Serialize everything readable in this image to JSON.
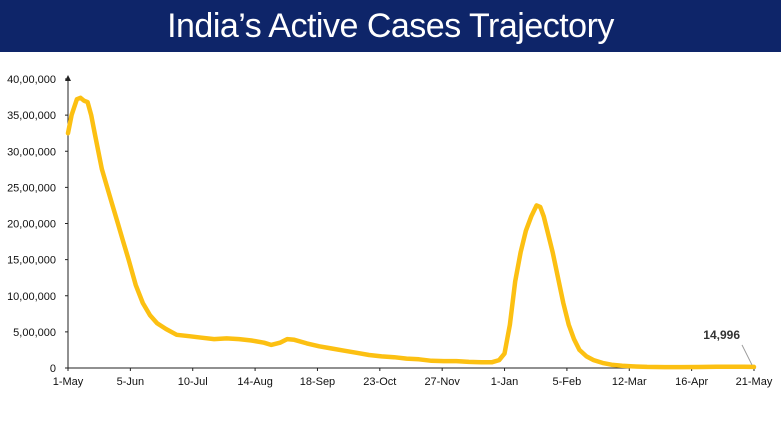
{
  "header": {
    "title": "India’s Active Cases Trajectory",
    "background": "#0e2569",
    "text_color": "#ffffff"
  },
  "chart_data": {
    "type": "line",
    "title": "India’s Active Cases Trajectory",
    "xlabel": "",
    "ylabel": "",
    "ylim": [
      0,
      4000000
    ],
    "y_ticks": [
      0,
      500000,
      1000000,
      1500000,
      2000000,
      2500000,
      3000000,
      3500000,
      4000000
    ],
    "y_tick_labels": [
      "0",
      "5,00,000",
      "10,00,000",
      "15,00,000",
      "20,00,000",
      "25,00,000",
      "30,00,000",
      "35,00,000",
      "40,00,000"
    ],
    "x_range": [
      "2021-05-01",
      "2022-05-21"
    ],
    "x_ticks": [
      "2021-05-01",
      "2021-06-05",
      "2021-07-10",
      "2021-08-14",
      "2021-09-18",
      "2021-10-23",
      "2021-11-27",
      "2022-01-01",
      "2022-02-05",
      "2022-03-12",
      "2022-04-16",
      "2022-05-21"
    ],
    "x_tick_labels": [
      "1-May",
      "5-Jun",
      "10-Jul",
      "14-Aug",
      "18-Sep",
      "23-Oct",
      "27-Nov",
      "1-Jan",
      "5-Feb",
      "12-Mar",
      "16-Apr",
      "21-May"
    ],
    "grid": false,
    "legend": "none",
    "line_color": "#fcc012",
    "series": [
      {
        "x": [
          "2021-05-01",
          "2021-05-03",
          "2021-05-06",
          "2021-05-08",
          "2021-05-10",
          "2021-05-12",
          "2021-05-14",
          "2021-05-16",
          "2021-05-18",
          "2021-05-20",
          "2021-05-23",
          "2021-05-26",
          "2021-05-29",
          "2021-06-01",
          "2021-06-04",
          "2021-06-08",
          "2021-06-12",
          "2021-06-16",
          "2021-06-20",
          "2021-06-25",
          "2021-07-01",
          "2021-07-08",
          "2021-07-15",
          "2021-07-22",
          "2021-07-29",
          "2021-08-05",
          "2021-08-12",
          "2021-08-19",
          "2021-08-23",
          "2021-08-28",
          "2021-09-01",
          "2021-09-05",
          "2021-09-12",
          "2021-09-19",
          "2021-09-26",
          "2021-10-03",
          "2021-10-10",
          "2021-10-17",
          "2021-10-24",
          "2021-10-31",
          "2021-11-07",
          "2021-11-14",
          "2021-11-21",
          "2021-11-28",
          "2021-12-05",
          "2021-12-12",
          "2021-12-19",
          "2021-12-25",
          "2021-12-29",
          "2022-01-01",
          "2022-01-04",
          "2022-01-07",
          "2022-01-10",
          "2022-01-13",
          "2022-01-16",
          "2022-01-19",
          "2022-01-21",
          "2022-01-23",
          "2022-01-25",
          "2022-01-28",
          "2022-01-31",
          "2022-02-03",
          "2022-02-06",
          "2022-02-09",
          "2022-02-12",
          "2022-02-16",
          "2022-02-20",
          "2022-02-25",
          "2022-03-02",
          "2022-03-08",
          "2022-03-14",
          "2022-03-22",
          "2022-04-01",
          "2022-04-10",
          "2022-04-20",
          "2022-04-30",
          "2022-05-10",
          "2022-05-15",
          "2022-05-21"
        ],
        "values": [
          3250000,
          3500000,
          3720000,
          3740000,
          3700000,
          3680000,
          3500000,
          3250000,
          3000000,
          2750000,
          2500000,
          2250000,
          2000000,
          1750000,
          1500000,
          1150000,
          900000,
          730000,
          620000,
          540000,
          460000,
          440000,
          420000,
          400000,
          410000,
          400000,
          380000,
          350000,
          320000,
          350000,
          400000,
          390000,
          340000,
          300000,
          270000,
          240000,
          210000,
          180000,
          160000,
          150000,
          130000,
          120000,
          100000,
          95000,
          95000,
          85000,
          80000,
          80000,
          110000,
          200000,
          600000,
          1200000,
          1600000,
          1900000,
          2100000,
          2250000,
          2230000,
          2100000,
          1900000,
          1600000,
          1250000,
          900000,
          600000,
          400000,
          250000,
          160000,
          110000,
          70000,
          45000,
          30000,
          22000,
          15000,
          13000,
          12000,
          14000,
          16000,
          17000,
          16000,
          14996
        ]
      }
    ],
    "annotations": [
      {
        "text": "14,996",
        "x": "2022-05-21",
        "y": 14996
      }
    ]
  }
}
